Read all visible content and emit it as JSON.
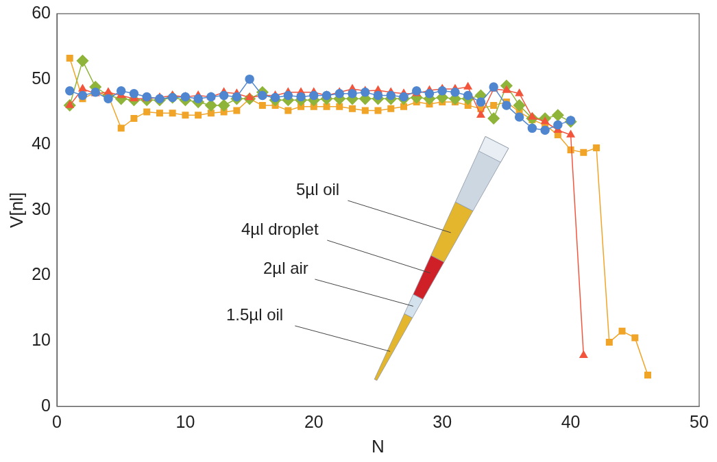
{
  "chart_data": {
    "type": "line",
    "x_label": "N",
    "y_label": "V[nl]",
    "annotations": [
      "5µl oil",
      "4µl droplet",
      "2µl air",
      "1.5µl oil"
    ],
    "x": [
      1,
      2,
      3,
      4,
      5,
      6,
      7,
      8,
      9,
      10,
      11,
      12,
      13,
      14,
      15,
      16,
      17,
      18,
      19,
      20,
      21,
      22,
      23,
      24,
      25,
      26,
      27,
      28,
      29,
      30,
      31,
      32,
      33,
      34,
      35,
      36,
      37,
      38,
      39,
      40,
      41,
      42,
      43,
      44,
      45,
      46
    ],
    "series": [
      {
        "color": "#4f86cf",
        "marker": "circle",
        "line_style": "solid",
        "values": [
          48.2,
          47.5,
          48,
          47,
          48.2,
          47.8,
          47.3,
          47,
          47.2,
          47.3,
          47,
          47.3,
          47.5,
          47.3,
          50,
          47.5,
          47.2,
          47.5,
          47.3,
          47.5,
          47.5,
          47.8,
          47.8,
          48,
          47.5,
          47.5,
          47.3,
          48.2,
          47.8,
          48.2,
          48,
          47.5,
          46.5,
          48.8,
          46,
          44.2,
          42.5,
          42.2,
          43,
          43.7,
          null,
          null,
          null,
          null,
          null,
          null
        ]
      },
      {
        "color": "#f2553c",
        "marker": "triangle",
        "line_style": "solid",
        "values": [
          46,
          48.5,
          47.8,
          48,
          47.5,
          47,
          47,
          47.2,
          47.5,
          47.3,
          47.5,
          47.3,
          48,
          47.8,
          47.2,
          47.5,
          47.5,
          48,
          48,
          48,
          47.5,
          48,
          48.5,
          48.2,
          48.3,
          48,
          47.8,
          47.8,
          48.3,
          48.5,
          48.5,
          48.8,
          44.5,
          48.5,
          48.3,
          47.8,
          44.2,
          43.5,
          42.2,
          41.5,
          7.8,
          null,
          null,
          null,
          null,
          null
        ]
      },
      {
        "color": "#8fb43a",
        "marker": "diamond",
        "line_style": "solid",
        "values": [
          46,
          52.8,
          48.8,
          47.5,
          47,
          46.8,
          46.8,
          46.8,
          47.2,
          46.8,
          46.5,
          46,
          46,
          47,
          47,
          48,
          46.8,
          46.8,
          46.8,
          46.8,
          47,
          47,
          47,
          47,
          47,
          47,
          47,
          47.2,
          47,
          47.2,
          47,
          47,
          47.5,
          44,
          49,
          46,
          44,
          44,
          44.5,
          43.5,
          null,
          null,
          null,
          null,
          null,
          null
        ]
      },
      {
        "color": "#f0a428",
        "marker": "square",
        "line_style": "solid",
        "values": [
          53.2,
          47,
          48,
          47.5,
          42.5,
          44,
          45,
          44.8,
          44.8,
          44.5,
          44.5,
          44.8,
          45,
          45.2,
          47,
          46,
          46,
          45.2,
          45.8,
          45.8,
          45.8,
          45.8,
          45.5,
          45.2,
          45.2,
          45.5,
          45.8,
          46.5,
          46.2,
          46.5,
          46.5,
          46,
          45.5,
          46,
          46.5,
          45,
          43.8,
          43,
          41.5,
          39.2,
          38.8,
          39.5,
          9.8,
          11.5,
          10.5,
          4.8
        ]
      }
    ],
    "xlim": [
      0,
      50
    ],
    "ylim": [
      0,
      60
    ],
    "xticks": [
      0,
      10,
      20,
      30,
      40,
      50
    ],
    "yticks": [
      0,
      10,
      20,
      30,
      40,
      50,
      60
    ],
    "grid": false
  }
}
